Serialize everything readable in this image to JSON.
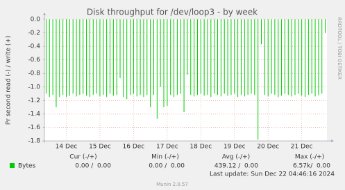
{
  "chart_data": {
    "type": "bar",
    "title": "Disk throughput for /dev/loop3 - by week",
    "y_label": "Pr second read (-) / write (+)",
    "watermark": "RRDTOOL / TOBI OETIKER",
    "categories": [
      null,
      null,
      null,
      null,
      null,
      null,
      "14 Dec",
      null,
      null,
      null,
      null,
      null,
      null,
      null,
      null,
      null,
      "15 Dec",
      null,
      null,
      null,
      null,
      null,
      null,
      null,
      null,
      null,
      "16 Dec",
      null,
      null,
      null,
      null,
      null,
      null,
      null,
      null,
      null,
      "17 Dec",
      null,
      null,
      null,
      null,
      null,
      null,
      null,
      null,
      null,
      "18 Dec",
      null,
      null,
      null,
      null,
      null,
      null,
      null,
      null,
      null,
      "19 Dec",
      null,
      null,
      null,
      null,
      null,
      null,
      null,
      null,
      null,
      "20 Dec",
      null,
      null,
      null,
      null,
      null,
      null,
      null,
      null,
      null,
      "21 Dec",
      null,
      null,
      null,
      null,
      null,
      null,
      null
    ],
    "series": [
      {
        "name": "Bytes",
        "color": "#00cc00",
        "values": [
          -1.1,
          -1.15,
          -1.12,
          -1.3,
          -1.15,
          -1.12,
          -1.15,
          -1.13,
          -1.1,
          -1.14,
          -1.12,
          -1.1,
          -1.13,
          -1.15,
          -1.12,
          -1.1,
          -1.14,
          -1.12,
          -1.15,
          -1.1,
          -1.13,
          -1.12,
          -0.87,
          -1.15,
          -1.18,
          -1.12,
          -1.1,
          -1.14,
          -1.12,
          -1.15,
          -1.12,
          -1.3,
          -1.12,
          -1.47,
          -1.0,
          -1.3,
          -1.28,
          -1.12,
          -1.15,
          -1.12,
          -1.1,
          -1.37,
          -0.82,
          -1.12,
          -1.14,
          -1.12,
          -1.1,
          -1.13,
          -1.12,
          -1.15,
          -1.1,
          -1.12,
          -1.14,
          -1.1,
          -1.13,
          -1.12,
          -1.1,
          -1.15,
          -1.12,
          -1.14,
          -1.12,
          -1.1,
          -1.12,
          -1.78,
          -0.37,
          -1.12,
          -1.14,
          -1.1,
          -1.12,
          -1.15,
          -1.13,
          -1.1,
          -1.12,
          -1.14,
          -1.12,
          -1.1,
          -1.13,
          -1.15,
          -1.12,
          -1.1,
          -1.14,
          -1.12,
          -1.1,
          -0.2
        ]
      }
    ],
    "ylim": [
      -1.8,
      0
    ],
    "yticks": [
      {
        "value": 0,
        "label": "0.0"
      },
      -0.2,
      -0.4,
      -0.6,
      -0.8,
      {
        "value": -1,
        "label": "-1.0"
      },
      -1.2,
      -1.4,
      -1.6,
      -1.8
    ],
    "grid": true,
    "legend_table": {
      "headers": [
        "Cur (-/+)",
        "Min (-/+)",
        "Avg (-/+)",
        "Max (-/+)"
      ],
      "cells": [
        "0.00 /  0.00",
        "0.00 /  0.00",
        "439.12 /  0.00",
        "6.57k/  0.00"
      ]
    },
    "last_update": "Last update: Sun Dec 22 04:46:16 2024",
    "footer": "Munin 2.0.57"
  }
}
